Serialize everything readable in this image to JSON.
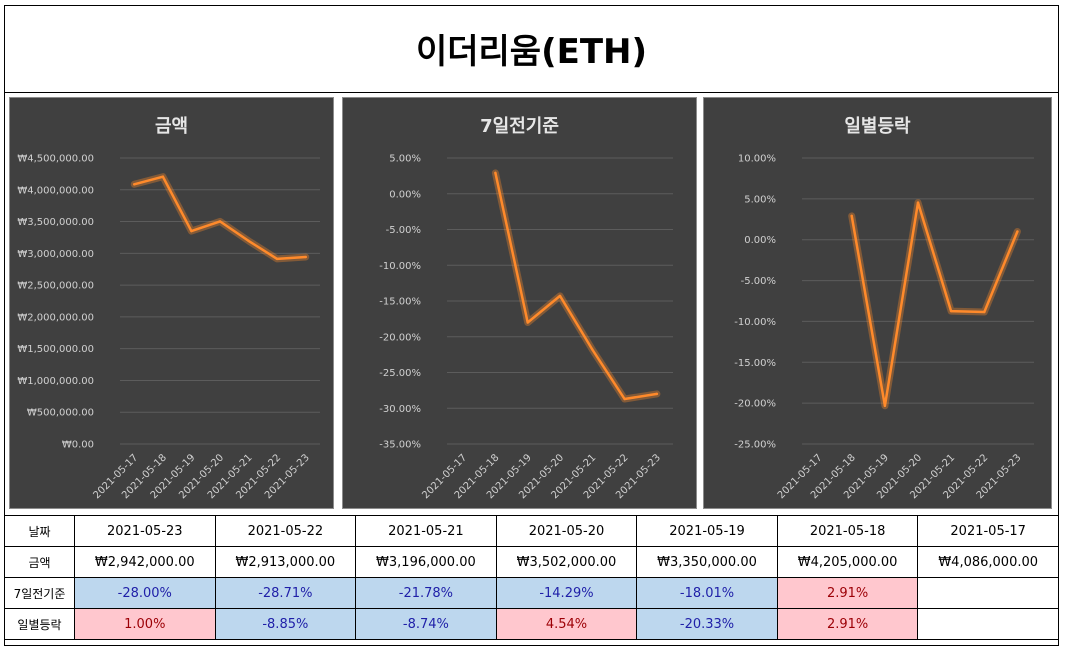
{
  "page_title": "이더리움(ETH)",
  "chart_data": [
    {
      "type": "line",
      "title": "금액",
      "categories": [
        "2021-05-17",
        "2021-05-18",
        "2021-05-19",
        "2021-05-20",
        "2021-05-21",
        "2021-05-22",
        "2021-05-23"
      ],
      "values": [
        4086000,
        4205000,
        3350000,
        3502000,
        3196000,
        2913000,
        2942000
      ],
      "ylim": [
        0,
        4500000
      ],
      "yticks": [
        0,
        500000,
        1000000,
        1500000,
        2000000,
        2500000,
        3000000,
        3500000,
        4000000,
        4500000
      ],
      "ytick_labels": [
        "₩0.00",
        "₩500,000.00",
        "₩1,000,000.00",
        "₩1,500,000.00",
        "₩2,000,000.00",
        "₩2,500,000.00",
        "₩3,000,000.00",
        "₩3,500,000.00",
        "₩4,000,000.00",
        "₩4,500,000.00"
      ],
      "color": "#ff8a2b"
    },
    {
      "type": "line",
      "title": "7일전기준",
      "categories": [
        "2021-05-17",
        "2021-05-18",
        "2021-05-19",
        "2021-05-20",
        "2021-05-21",
        "2021-05-22",
        "2021-05-23"
      ],
      "values": [
        null,
        2.91,
        -18.01,
        -14.29,
        -21.78,
        -28.71,
        -28.0
      ],
      "ylim": [
        -35,
        5
      ],
      "yticks": [
        -35,
        -30,
        -25,
        -20,
        -15,
        -10,
        -5,
        0,
        5
      ],
      "ytick_labels": [
        "-35.00%",
        "-30.00%",
        "-25.00%",
        "-20.00%",
        "-15.00%",
        "-10.00%",
        "-5.00%",
        "0.00%",
        "5.00%"
      ],
      "color": "#ff8a2b"
    },
    {
      "type": "line",
      "title": "일별등락",
      "categories": [
        "2021-05-17",
        "2021-05-18",
        "2021-05-19",
        "2021-05-20",
        "2021-05-21",
        "2021-05-22",
        "2021-05-23"
      ],
      "values": [
        null,
        2.91,
        -20.33,
        4.54,
        -8.74,
        -8.85,
        1.0
      ],
      "ylim": [
        -25,
        10
      ],
      "yticks": [
        -25,
        -20,
        -15,
        -10,
        -5,
        0,
        5,
        10
      ],
      "ytick_labels": [
        "-25.00%",
        "-20.00%",
        "-15.00%",
        "-10.00%",
        "-5.00%",
        "0.00%",
        "5.00%",
        "10.00%"
      ],
      "color": "#ff8a2b"
    }
  ],
  "table": {
    "labels": {
      "date": "날짜",
      "amount": "금액",
      "week": "7일전기준",
      "daily": "일별등락"
    },
    "dates": [
      "2021-05-23",
      "2021-05-22",
      "2021-05-21",
      "2021-05-20",
      "2021-05-19",
      "2021-05-18",
      "2021-05-17"
    ],
    "amounts": [
      "₩2,942,000.00",
      "₩2,913,000.00",
      "₩3,196,000.00",
      "₩3,502,000.00",
      "₩3,350,000.00",
      "₩4,205,000.00",
      "₩4,086,000.00"
    ],
    "week": [
      "-28.00%",
      "-28.71%",
      "-21.78%",
      "-14.29%",
      "-18.01%",
      "2.91%",
      ""
    ],
    "daily": [
      "1.00%",
      "-8.85%",
      "-8.74%",
      "4.54%",
      "-20.33%",
      "2.91%",
      ""
    ],
    "colors": {
      "negative_bg": "#bdd7ee",
      "positive_bg": "#ffc7ce"
    }
  }
}
